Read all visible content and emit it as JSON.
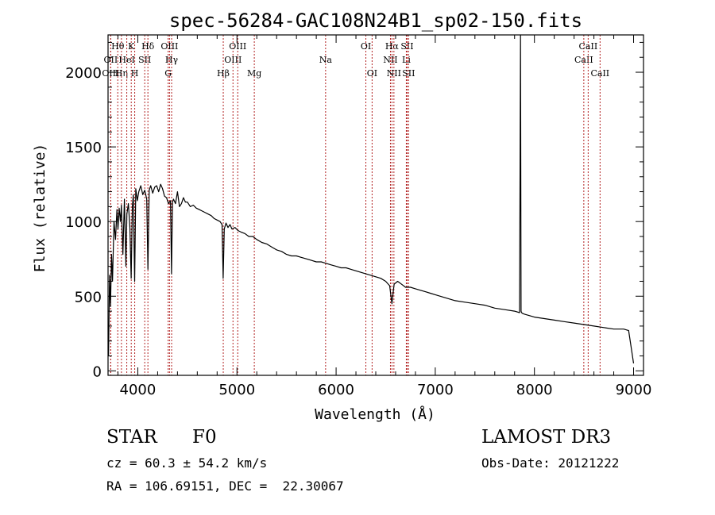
{
  "chart_data": {
    "type": "line",
    "title": "spec-56284-GAC108N24B1_sp02-150.fits",
    "xlabel": "Wavelength (Å)",
    "ylabel": "Flux (relative)",
    "xlim": [
      3700,
      9100
    ],
    "ylim": [
      -30,
      2250
    ],
    "x_ticks": [
      4000,
      5000,
      6000,
      7000,
      8000,
      9000
    ],
    "x_tick_labels": [
      "4000",
      "5000",
      "6000",
      "7000",
      "8000",
      "9000"
    ],
    "y_ticks": [
      0,
      500,
      1000,
      1500,
      2000
    ],
    "y_tick_labels": [
      "0",
      "500",
      "1000",
      "1500",
      "2000"
    ],
    "grid": false,
    "series": [
      {
        "name": "spectrum",
        "x": [
          3705,
          3715,
          3725,
          3735,
          3745,
          3760,
          3775,
          3790,
          3800,
          3812,
          3825,
          3835,
          3850,
          3865,
          3880,
          3890,
          3905,
          3920,
          3933,
          3945,
          3955,
          3968,
          3980,
          3995,
          4010,
          4030,
          4050,
          4070,
          4090,
          4102,
          4115,
          4130,
          4150,
          4170,
          4190,
          4210,
          4230,
          4250,
          4270,
          4290,
          4310,
          4330,
          4340,
          4350,
          4360,
          4380,
          4400,
          4420,
          4440,
          4460,
          4480,
          4500,
          4530,
          4560,
          4590,
          4620,
          4650,
          4680,
          4710,
          4740,
          4770,
          4800,
          4830,
          4850,
          4861,
          4872,
          4890,
          4910,
          4930,
          4950,
          4980,
          5010,
          5040,
          5080,
          5120,
          5160,
          5200,
          5250,
          5300,
          5350,
          5400,
          5450,
          5500,
          5550,
          5600,
          5650,
          5700,
          5750,
          5800,
          5850,
          5900,
          5950,
          6000,
          6050,
          6100,
          6150,
          6200,
          6250,
          6300,
          6350,
          6400,
          6450,
          6500,
          6540,
          6563,
          6585,
          6620,
          6660,
          6700,
          6750,
          6800,
          6850,
          6900,
          6950,
          7000,
          7100,
          7200,
          7300,
          7400,
          7500,
          7600,
          7700,
          7800,
          7850,
          7860,
          7865,
          7870,
          7880,
          7900,
          8000,
          8100,
          8200,
          8300,
          8400,
          8500,
          8600,
          8700,
          8800,
          8900,
          8950,
          9000
        ],
        "values": [
          100,
          640,
          430,
          780,
          600,
          1000,
          880,
          1080,
          950,
          1090,
          1000,
          1110,
          780,
          1150,
          700,
          1050,
          1120,
          960,
          620,
          1100,
          1180,
          600,
          1220,
          1140,
          1200,
          1240,
          1180,
          1210,
          1150,
          680,
          1210,
          1240,
          1190,
          1230,
          1240,
          1200,
          1250,
          1220,
          1170,
          1160,
          1120,
          1140,
          650,
          1130,
          1150,
          1120,
          1200,
          1100,
          1120,
          1160,
          1130,
          1130,
          1100,
          1110,
          1090,
          1080,
          1070,
          1060,
          1050,
          1040,
          1020,
          1010,
          1000,
          980,
          620,
          950,
          990,
          960,
          980,
          950,
          960,
          940,
          930,
          920,
          900,
          900,
          880,
          860,
          850,
          830,
          810,
          800,
          780,
          770,
          770,
          760,
          750,
          740,
          730,
          730,
          720,
          710,
          700,
          690,
          690,
          680,
          670,
          660,
          650,
          640,
          630,
          620,
          600,
          570,
          450,
          580,
          600,
          580,
          560,
          560,
          550,
          540,
          530,
          520,
          510,
          490,
          470,
          460,
          450,
          440,
          420,
          410,
          400,
          390,
          2250,
          400,
          390,
          385,
          380,
          360,
          350,
          340,
          330,
          320,
          310,
          300,
          290,
          280,
          280,
          270,
          50
        ]
      }
    ],
    "lines": [
      {
        "name": "OII",
        "x": 3727,
        "label_row": 2
      },
      {
        "name": "OIII",
        "x": 3727,
        "label_row": 3
      },
      {
        "name": "Hθ",
        "x": 3798,
        "label_row": 1
      },
      {
        "name": "Hη",
        "x": 3835,
        "label_row": 3
      },
      {
        "name": "HeI",
        "x": 3889,
        "label_row": 2
      },
      {
        "name": "K",
        "x": 3934,
        "label_row": 1
      },
      {
        "name": "H",
        "x": 3969,
        "label_row": 3
      },
      {
        "name": "SII",
        "x": 4070,
        "label_row": 2
      },
      {
        "name": "Hδ",
        "x": 4102,
        "label_row": 1
      },
      {
        "name": "G",
        "x": 4306,
        "label_row": 3
      },
      {
        "name": "OIII",
        "x": 4320,
        "label_row": 1
      },
      {
        "name": "Hγ",
        "x": 4341,
        "label_row": 2
      },
      {
        "name": "Hβ",
        "x": 4862,
        "label_row": 3
      },
      {
        "name": "OIII",
        "x": 4960,
        "label_row": 2
      },
      {
        "name": "OIII",
        "x": 5008,
        "label_row": 1
      },
      {
        "name": "Mg",
        "x": 5175,
        "label_row": 3
      },
      {
        "name": "Na",
        "x": 5894,
        "label_row": 2
      },
      {
        "name": "OI",
        "x": 6300,
        "label_row": 1
      },
      {
        "name": "OI",
        "x": 6363,
        "label_row": 3
      },
      {
        "name": "NII",
        "x": 6548,
        "label_row": 2
      },
      {
        "name": "Hα",
        "x": 6563,
        "label_row": 1
      },
      {
        "name": "NII",
        "x": 6583,
        "label_row": 3
      },
      {
        "name": "Li",
        "x": 6708,
        "label_row": 2
      },
      {
        "name": "SII",
        "x": 6716,
        "label_row": 1
      },
      {
        "name": "SII",
        "x": 6731,
        "label_row": 3
      },
      {
        "name": "CaII",
        "x": 8498,
        "label_row": 2
      },
      {
        "name": "CaII",
        "x": 8542,
        "label_row": 1
      },
      {
        "name": "CaII",
        "x": 8662,
        "label_row": 3
      }
    ]
  },
  "info": {
    "class_text": "STAR",
    "subclass_text": "F0",
    "survey_text": "LAMOST DR3",
    "cz_text": "cz = 60.3 ± 54.2 km/s",
    "obsdate_text": "Obs-Date: 20121222",
    "radec_text": "RA = 106.69151, DEC =  22.30067"
  },
  "colors": {
    "spectrum": "#000000",
    "line_marker": "#b22222",
    "axes": "#000000"
  }
}
